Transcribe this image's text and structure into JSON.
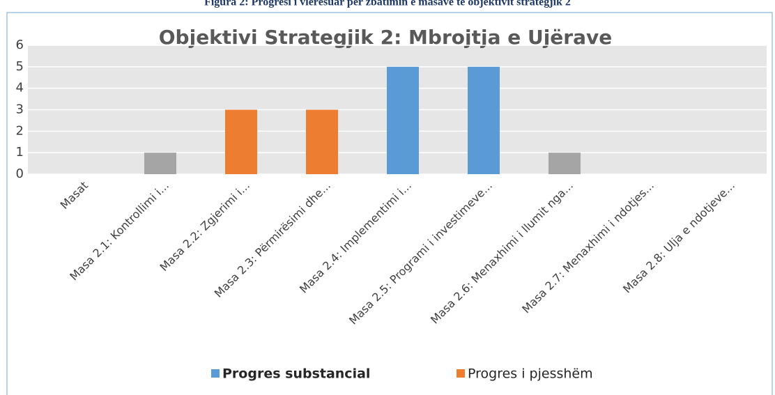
{
  "caption": "Figura 2: Progresi i vlerësuar për zbatimin e masave të objektivit strategjik 2",
  "chart_data": {
    "type": "bar",
    "title": "Objektivi Strategjik 2: Mbrojtja e Ujërave",
    "categories": [
      "Masat",
      "Masa 2.1: Kontrollimi i...",
      "Masa 2.2: Zgjerimi i...",
      "Masa 2.3: Përmirësimi dhe...",
      "Masa 2.4: Implementimi i...",
      "Masa 2.5: Programi i investimeve...",
      "Masa 2.6: Menaxhimi i llumit nga...",
      "Masa 2.7: Menaxhimi i ndotjes...",
      "Masa 2.8: Ulja e ndotjeve..."
    ],
    "values": [
      0,
      1,
      3,
      3,
      5,
      5,
      1,
      0,
      0
    ],
    "colors": [
      "#a5a5a5",
      "#a5a5a5",
      "#ed7d31",
      "#ed7d31",
      "#5b9bd5",
      "#5b9bd5",
      "#a5a5a5",
      "#a5a5a5",
      "#a5a5a5"
    ],
    "legend": [
      {
        "label": "Progres substancial",
        "color": "#5b9bd5"
      },
      {
        "label": "Progres i pjesshëm",
        "color": "#ed7d31"
      }
    ],
    "ylim": [
      0,
      6
    ],
    "yticks": [
      0,
      1,
      2,
      3,
      4,
      5,
      6
    ],
    "grid": true
  }
}
